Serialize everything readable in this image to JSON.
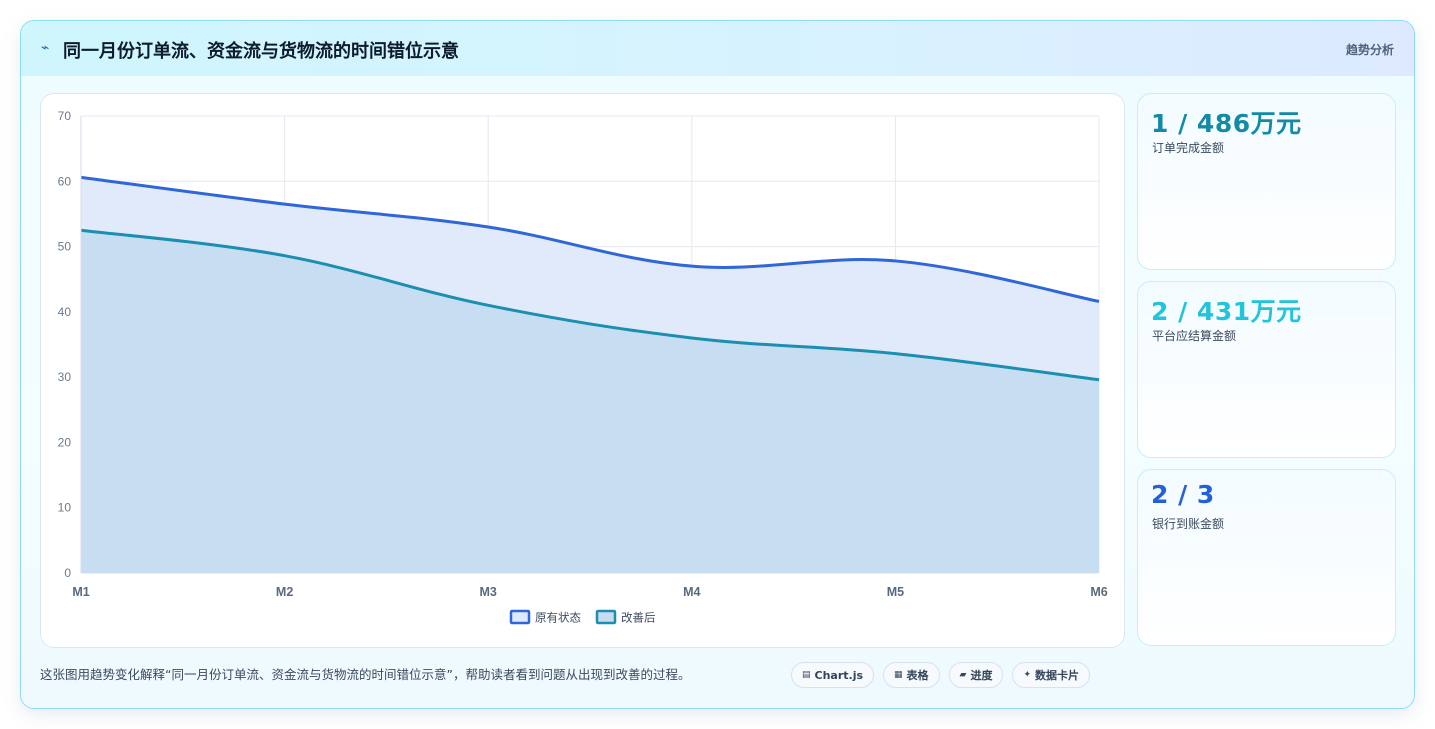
{
  "header": {
    "icon": "trend-line-icon",
    "title": "同一月份订单流、资金流与货物流的时间错位示意",
    "tag": "趋势分析"
  },
  "chart_data": {
    "type": "area",
    "categories": [
      "M1",
      "M2",
      "M3",
      "M4",
      "M5",
      "M6"
    ],
    "ylim": [
      0,
      70
    ],
    "yticks": [
      0,
      10,
      20,
      30,
      40,
      50,
      60,
      70
    ],
    "grid": true,
    "legend_position": "bottom",
    "series": [
      {
        "name": "原有状态",
        "values": [
          60.6,
          56.5,
          53.0,
          47.0,
          47.8,
          41.6
        ],
        "color": "#2f66d8",
        "fill": "#dfe9fb"
      },
      {
        "name": "改善后",
        "values": [
          52.5,
          48.6,
          41.0,
          36.0,
          33.6,
          29.6
        ],
        "color": "#1a8fb0",
        "fill": "#c5dcf1"
      }
    ]
  },
  "kpis": [
    {
      "value": "1 / 486万元",
      "label": "订单完成金额",
      "color": "#128aa8"
    },
    {
      "value": "2 / 431万元",
      "label": "平台应结算金额",
      "color": "#22c4dc"
    },
    {
      "value": "2 / 3",
      "label": "银行到账金额",
      "color": "#2461d8"
    }
  ],
  "footer": {
    "description": "这张图用趋势变化解释“同一月份订单流、资金流与货物流的时间错位示意”，帮助读者看到问题从出现到改善的过程。",
    "chips": [
      {
        "icon": "chart-icon",
        "glyph": "▤",
        "label": "Chart.js"
      },
      {
        "icon": "table-icon",
        "glyph": "▦",
        "label": "表格"
      },
      {
        "icon": "progress-icon",
        "glyph": "▰",
        "label": "进度"
      },
      {
        "icon": "sparkle-icon",
        "glyph": "✦",
        "label": "数据卡片"
      }
    ]
  }
}
